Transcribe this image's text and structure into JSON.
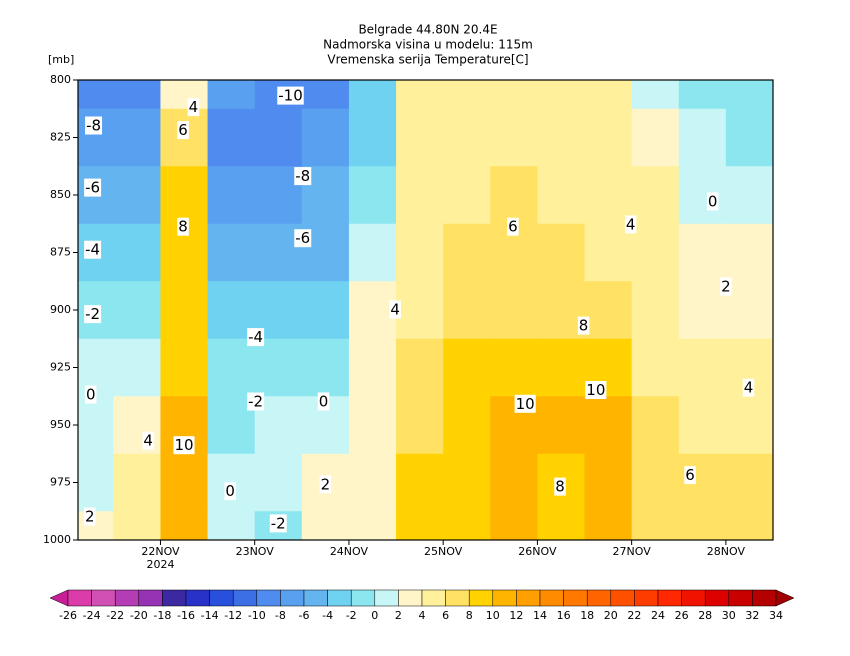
{
  "chart_data": {
    "type": "contour",
    "title": [
      "Belgrade  44.80N 20.4E",
      "Nadmorska visina u modelu: 115m",
      "Vremenska serija Temperature[C]"
    ],
    "y_unit_label": "[mb]",
    "x": [
      -0.75,
      -0.25,
      0.25,
      0.75,
      1.25,
      1.75,
      2.25,
      2.75,
      3.25,
      3.75,
      4.25,
      4.75,
      5.25,
      5.75,
      6.25
    ],
    "levels": [
      800,
      825,
      850,
      875,
      900,
      925,
      950,
      975,
      1000
    ],
    "values": [
      [
        -9,
        -9,
        2,
        -8,
        -10,
        -9,
        -4,
        4,
        5,
        5,
        5,
        4,
        1,
        -1,
        -1
      ],
      [
        -8,
        -7,
        6,
        -9,
        -9,
        -8,
        -3,
        4,
        5,
        5,
        5,
        4,
        2,
        0,
        -1
      ],
      [
        -6,
        -5,
        8,
        -8,
        -8,
        -6,
        -2,
        4,
        5,
        6,
        5,
        5,
        4,
        1,
        1
      ],
      [
        -4,
        -3,
        8,
        -6,
        -6,
        -5,
        0,
        4,
        6,
        6,
        6,
        5,
        4,
        2,
        2
      ],
      [
        -2,
        -1,
        8,
        -4,
        -4,
        -3,
        2,
        5,
        7,
        7,
        7,
        6,
        4,
        3,
        3
      ],
      [
        0,
        1,
        9,
        -2,
        -2,
        -1,
        3,
        6,
        8,
        8,
        9,
        9,
        5,
        4,
        4
      ],
      [
        1,
        3,
        10,
        -1,
        0,
        0,
        3,
        7,
        9,
        10,
        10,
        10,
        6,
        5,
        5
      ],
      [
        1,
        4,
        11,
        0,
        1,
        2,
        3,
        8,
        9,
        10,
        9,
        10,
        6,
        6,
        6
      ],
      [
        2,
        4,
        10,
        1,
        -1,
        2,
        3,
        8,
        9,
        10,
        8,
        10,
        6,
        6,
        7
      ]
    ],
    "xlim": [
      -0.875,
      6.5
    ],
    "ylim": [
      1000,
      800
    ],
    "xticks": [
      {
        "value": 0,
        "label": "22NOV"
      },
      {
        "value": 1,
        "label": "23NOV"
      },
      {
        "value": 2,
        "label": "24NOV"
      },
      {
        "value": 3,
        "label": "25NOV"
      },
      {
        "value": 4,
        "label": "26NOV"
      },
      {
        "value": 5,
        "label": "27NOV"
      },
      {
        "value": 6,
        "label": "28NOV"
      }
    ],
    "x_year_label": "2024",
    "yticks": [
      800,
      825,
      850,
      875,
      900,
      925,
      950,
      975,
      1000
    ],
    "contour_labels": [
      {
        "value": -10,
        "x": 1.38,
        "y": 807
      },
      {
        "value": -8,
        "x": -0.71,
        "y": 820
      },
      {
        "value": 6,
        "x": 0.24,
        "y": 822
      },
      {
        "value": 4,
        "x": 0.35,
        "y": 812
      },
      {
        "value": -8,
        "x": 1.51,
        "y": 842
      },
      {
        "value": -6,
        "x": -0.72,
        "y": 847
      },
      {
        "value": 8,
        "x": 0.24,
        "y": 864
      },
      {
        "value": -6,
        "x": 1.51,
        "y": 869
      },
      {
        "value": -4,
        "x": -0.72,
        "y": 874
      },
      {
        "value": 6,
        "x": 3.74,
        "y": 864
      },
      {
        "value": 4,
        "x": 4.99,
        "y": 863
      },
      {
        "value": 0,
        "x": 5.86,
        "y": 853
      },
      {
        "value": 2,
        "x": 6.0,
        "y": 890
      },
      {
        "value": -2,
        "x": -0.72,
        "y": 902
      },
      {
        "value": 4,
        "x": 2.49,
        "y": 900
      },
      {
        "value": -4,
        "x": 1.01,
        "y": 912
      },
      {
        "value": 8,
        "x": 4.49,
        "y": 907
      },
      {
        "value": -2,
        "x": 1.01,
        "y": 940
      },
      {
        "value": 0,
        "x": 1.73,
        "y": 940
      },
      {
        "value": 10,
        "x": 3.87,
        "y": 941
      },
      {
        "value": 10,
        "x": 4.62,
        "y": 935
      },
      {
        "value": 4,
        "x": 6.24,
        "y": 934
      },
      {
        "value": 0,
        "x": -0.74,
        "y": 937
      },
      {
        "value": 4,
        "x": -0.13,
        "y": 957
      },
      {
        "value": 10,
        "x": 0.25,
        "y": 959
      },
      {
        "value": 2,
        "x": 1.75,
        "y": 976
      },
      {
        "value": 6,
        "x": 5.62,
        "y": 972
      },
      {
        "value": 8,
        "x": 4.24,
        "y": 977
      },
      {
        "value": 0,
        "x": 0.74,
        "y": 979
      },
      {
        "value": -2,
        "x": 1.25,
        "y": 993
      },
      {
        "value": 2,
        "x": -0.75,
        "y": 990
      }
    ],
    "colorbar": {
      "levels": [
        -26,
        -24,
        -22,
        -20,
        -18,
        -16,
        -14,
        -12,
        -10,
        -8,
        -6,
        -4,
        -2,
        0,
        2,
        4,
        6,
        8,
        10,
        12,
        14,
        16,
        18,
        20,
        22,
        24,
        26,
        28,
        30,
        32,
        34
      ],
      "colors": [
        "#c81e96",
        "#dc3caa",
        "#d250b4",
        "#b43cb4",
        "#9632b4",
        "#3c28a0",
        "#2832c8",
        "#2850dc",
        "#3c6ee6",
        "#508cf0",
        "#5aa0f0",
        "#64b4f0",
        "#6ed2f0",
        "#8ce6f0",
        "#c8f5f5",
        "#fff5c8",
        "#fff09b",
        "#ffe164",
        "#ffd200",
        "#ffb400",
        "#ffa000",
        "#ff8c00",
        "#ff7800",
        "#ff6400",
        "#ff5000",
        "#ff3c00",
        "#ff2800",
        "#f01400",
        "#dc0000",
        "#c80000",
        "#b40000",
        "#a00000"
      ]
    }
  }
}
